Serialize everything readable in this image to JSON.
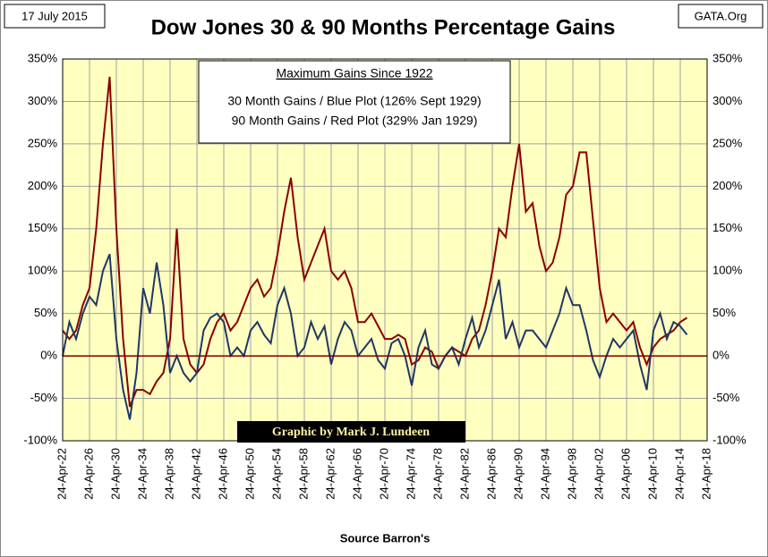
{
  "chart_data": {
    "type": "line",
    "title": "Dow Jones 30 & 90 Months Percentage Gains",
    "date": "17 July 2015",
    "source_site": "GATA.Org",
    "legend_title": "Maximum Gains Since 1922",
    "legend_lines": [
      "30 Month Gains / Blue Plot (126% Sept 1929)",
      "90 Month Gains / Red Plot (329% Jan 1929)"
    ],
    "credit": "Graphic by Mark J. Lundeen",
    "x_label": "Source Barron's",
    "grid": true,
    "x": [
      1922,
      1923,
      1924,
      1925,
      1926,
      1927,
      1928,
      1929,
      1930,
      1931,
      1932,
      1933,
      1934,
      1935,
      1936,
      1937,
      1938,
      1939,
      1940,
      1941,
      1942,
      1943,
      1944,
      1945,
      1946,
      1947,
      1948,
      1949,
      1950,
      1951,
      1952,
      1953,
      1954,
      1955,
      1956,
      1957,
      1958,
      1959,
      1960,
      1961,
      1962,
      1963,
      1964,
      1965,
      1966,
      1967,
      1968,
      1969,
      1970,
      1971,
      1972,
      1973,
      1974,
      1975,
      1976,
      1977,
      1978,
      1979,
      1980,
      1981,
      1982,
      1983,
      1984,
      1985,
      1986,
      1987,
      1988,
      1989,
      1990,
      1991,
      1992,
      1993,
      1994,
      1995,
      1996,
      1997,
      1998,
      1999,
      2000,
      2001,
      2002,
      2003,
      2004,
      2005,
      2006,
      2007,
      2008,
      2009,
      2010,
      2011,
      2012,
      2013,
      2014,
      2015
    ],
    "series": [
      {
        "name": "90 Month Gains",
        "color": "#8b0000",
        "values": [
          30,
          20,
          30,
          60,
          80,
          150,
          250,
          329,
          150,
          20,
          -60,
          -40,
          -40,
          -45,
          -30,
          -20,
          20,
          150,
          20,
          -10,
          -20,
          -10,
          20,
          40,
          50,
          30,
          40,
          60,
          80,
          90,
          70,
          80,
          120,
          170,
          210,
          140,
          90,
          110,
          130,
          150,
          100,
          90,
          100,
          80,
          40,
          40,
          50,
          35,
          20,
          20,
          25,
          20,
          -10,
          -5,
          10,
          5,
          -15,
          0,
          10,
          5,
          0,
          20,
          30,
          60,
          100,
          150,
          140,
          200,
          250,
          170,
          180,
          130,
          100,
          110,
          140,
          190,
          200,
          240,
          240,
          160,
          80,
          40,
          50,
          40,
          30,
          40,
          10,
          -10,
          10,
          20,
          25,
          30,
          40,
          45
        ]
      },
      {
        "name": "30 Month Gains",
        "color": "#1f3864",
        "values": [
          0,
          40,
          20,
          50,
          70,
          60,
          100,
          120,
          20,
          -40,
          -75,
          -20,
          80,
          50,
          110,
          60,
          -20,
          0,
          -20,
          -30,
          -20,
          30,
          45,
          50,
          40,
          0,
          10,
          0,
          30,
          40,
          25,
          15,
          60,
          80,
          50,
          0,
          10,
          40,
          20,
          35,
          -10,
          20,
          40,
          30,
          0,
          10,
          20,
          -5,
          -15,
          15,
          20,
          0,
          -35,
          10,
          30,
          -10,
          -15,
          0,
          10,
          -10,
          20,
          45,
          10,
          30,
          60,
          90,
          20,
          40,
          10,
          30,
          30,
          20,
          10,
          30,
          50,
          80,
          60,
          60,
          30,
          -5,
          -25,
          0,
          20,
          10,
          20,
          30,
          -10,
          -40,
          30,
          50,
          20,
          40,
          35,
          25
        ]
      }
    ],
    "xlim": [
      1922,
      2018
    ],
    "xticks": [
      {
        "value": 1922,
        "label": "24-Apr-22"
      },
      {
        "value": 1926,
        "label": "24-Apr-26"
      },
      {
        "value": 1930,
        "label": "24-Apr-30"
      },
      {
        "value": 1934,
        "label": "24-Apr-34"
      },
      {
        "value": 1938,
        "label": "24-Apr-38"
      },
      {
        "value": 1942,
        "label": "24-Apr-42"
      },
      {
        "value": 1946,
        "label": "24-Apr-46"
      },
      {
        "value": 1950,
        "label": "24-Apr-50"
      },
      {
        "value": 1954,
        "label": "24-Apr-54"
      },
      {
        "value": 1958,
        "label": "24-Apr-58"
      },
      {
        "value": 1962,
        "label": "24-Apr-62"
      },
      {
        "value": 1966,
        "label": "24-Apr-66"
      },
      {
        "value": 1970,
        "label": "24-Apr-70"
      },
      {
        "value": 1974,
        "label": "24-Apr-74"
      },
      {
        "value": 1978,
        "label": "24-Apr-78"
      },
      {
        "value": 1982,
        "label": "24-Apr-82"
      },
      {
        "value": 1986,
        "label": "24-Apr-86"
      },
      {
        "value": 1990,
        "label": "24-Apr-90"
      },
      {
        "value": 1994,
        "label": "24-Apr-94"
      },
      {
        "value": 1998,
        "label": "24-Apr-98"
      },
      {
        "value": 2002,
        "label": "24-Apr-02"
      },
      {
        "value": 2006,
        "label": "24-Apr-06"
      },
      {
        "value": 2010,
        "label": "24-Apr-10"
      },
      {
        "value": 2014,
        "label": "24-Apr-14"
      },
      {
        "value": 2018,
        "label": "24-Apr-18"
      }
    ],
    "ylim": [
      -100,
      350
    ],
    "yticks": [
      {
        "value": -100,
        "label": "-100%"
      },
      {
        "value": -50,
        "label": "-50%"
      },
      {
        "value": 0,
        "label": "0%"
      },
      {
        "value": 50,
        "label": "50%"
      },
      {
        "value": 100,
        "label": "100%"
      },
      {
        "value": 150,
        "label": "150%"
      },
      {
        "value": 200,
        "label": "200%"
      },
      {
        "value": 250,
        "label": "250%"
      },
      {
        "value": 300,
        "label": "300%"
      },
      {
        "value": 350,
        "label": "350%"
      }
    ]
  }
}
